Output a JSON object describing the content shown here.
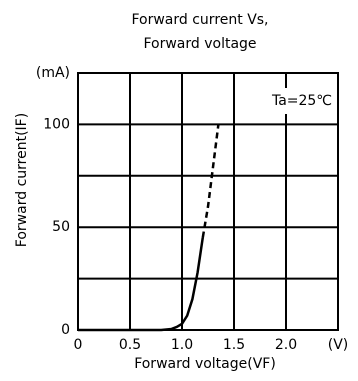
{
  "chart_data": {
    "type": "line",
    "title": [
      "Forward current Vs,",
      "Forward voltage"
    ],
    "x_label": "Forward voltage(VF)",
    "y_label": "Forward current(IF)",
    "annotation": "Ta=25℃",
    "xlim": [
      0,
      2.5
    ],
    "xticks": [
      0,
      0.5,
      {
        "value": 1.0,
        "label": "1.0"
      },
      1.5,
      {
        "value": 2.0,
        "label": "2.0"
      },
      {
        "value": 2.5,
        "label": "(V)"
      }
    ],
    "ylim": [
      0,
      125
    ],
    "yticks": [
      0,
      50,
      100,
      {
        "value": 125,
        "label": "(mA)"
      }
    ],
    "minor_yticks": [
      25,
      75
    ],
    "grid": true,
    "series": [
      {
        "color": "#000000",
        "dashed": false,
        "x": [
          0,
          0.8,
          0.9,
          0.95,
          1.0,
          1.05,
          1.1,
          1.15,
          1.2
        ],
        "values": [
          0,
          0,
          0.5,
          1.5,
          3,
          7,
          15,
          28,
          45
        ]
      },
      {
        "color": "#000000",
        "dashed": true,
        "x": [
          1.2,
          1.25,
          1.3,
          1.35
        ],
        "values": [
          45,
          60,
          80,
          100
        ]
      }
    ]
  }
}
